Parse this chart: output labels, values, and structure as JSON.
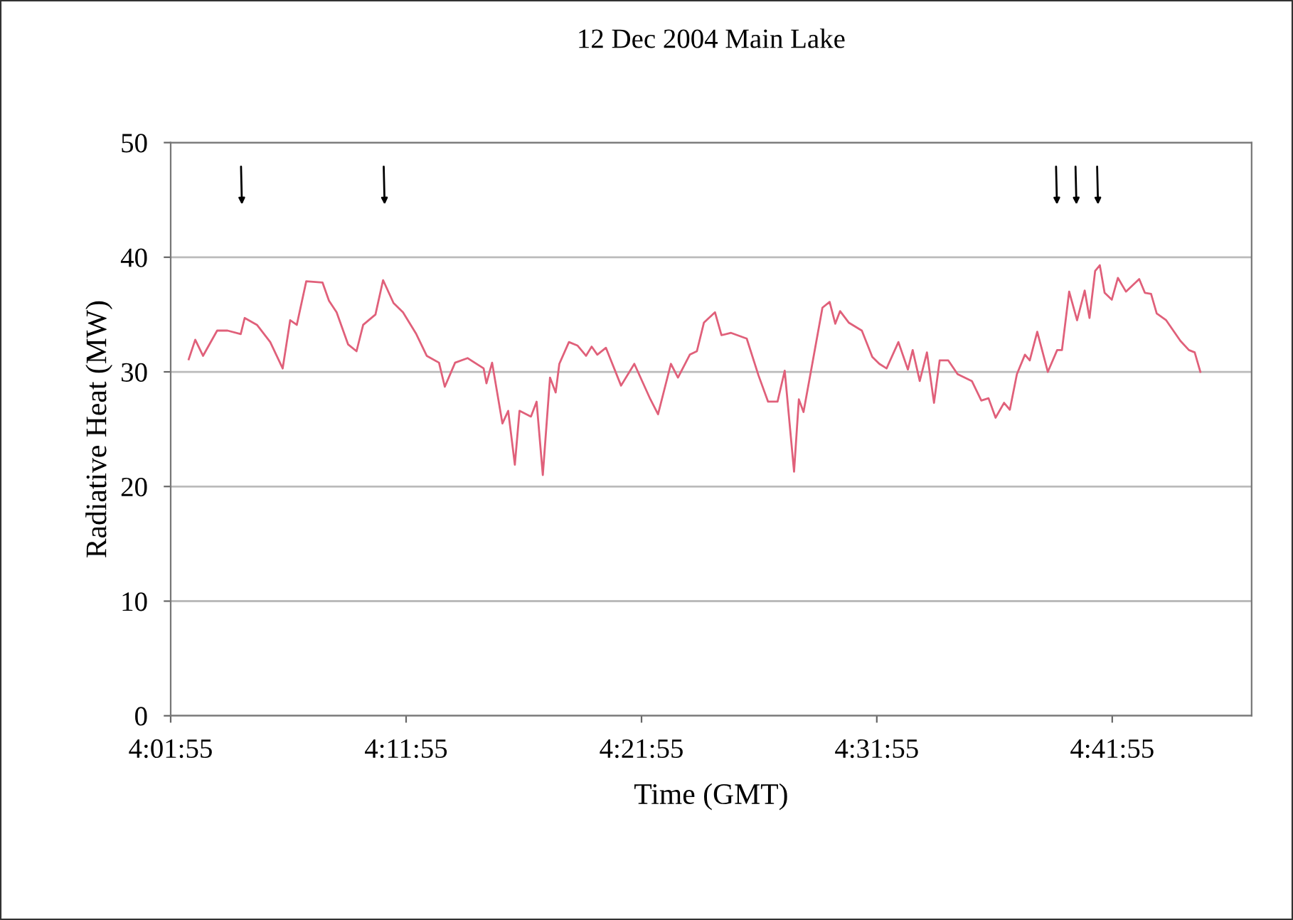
{
  "chart_data": {
    "type": "line",
    "title": "12 Dec 2004 Main Lake",
    "xlabel": "Time (GMT)",
    "ylabel": "Radiative Heat (MW)",
    "xlim": [
      4.0319,
      4.7973
    ],
    "ylim": [
      0,
      50
    ],
    "yticks": [
      0,
      10,
      20,
      30,
      40,
      50
    ],
    "xticks": [
      {
        "value": 4.0319,
        "label": "4:01:55"
      },
      {
        "value": 4.1986,
        "label": "4:11:55"
      },
      {
        "value": 4.3653,
        "label": "4:21:55"
      },
      {
        "value": 4.5319,
        "label": "4:31:55"
      },
      {
        "value": 4.6986,
        "label": "4:41:55"
      }
    ],
    "grid": "y",
    "marker": "none",
    "line_style": "solid",
    "series": [
      {
        "color": "#e0607a",
        "x": [
          4.0447,
          4.0493,
          4.0548,
          4.0648,
          4.0722,
          4.0815,
          4.0843,
          4.093,
          4.1024,
          4.1112,
          4.1165,
          4.1212,
          4.1279,
          4.1394,
          4.144,
          4.1494,
          4.1575,
          4.1635,
          4.1682,
          4.1769,
          4.1823,
          4.1897,
          4.1964,
          4.2058,
          4.2132,
          4.2219,
          4.226,
          4.2333,
          4.2421,
          4.2535,
          4.2555,
          4.2595,
          4.2668,
          4.2709,
          4.2756,
          4.2789,
          4.287,
          4.291,
          4.2954,
          4.3005,
          4.3045,
          4.3071,
          4.3139,
          4.3199,
          4.326,
          4.33,
          4.334,
          4.3401,
          4.3508,
          4.3602,
          4.3716,
          4.377,
          4.3861,
          4.3911,
          4.3995,
          4.4045,
          4.4095,
          4.4173,
          4.4219,
          4.4287,
          4.4398,
          4.4481,
          4.4549,
          4.4616,
          4.4667,
          4.4733,
          4.4767,
          4.48,
          4.4868,
          4.4934,
          4.4985,
          4.5025,
          4.5059,
          4.512,
          4.5213,
          4.5287,
          4.5337,
          4.5388,
          4.5472,
          4.5539,
          4.5573,
          4.5623,
          4.5674,
          4.5724,
          4.5764,
          4.5825,
          4.5891,
          4.5992,
          4.6059,
          4.611,
          4.616,
          4.622,
          4.6261,
          4.6311,
          4.6368,
          4.6402,
          4.6455,
          4.653,
          4.6596,
          4.663,
          4.6681,
          4.6737,
          4.6791,
          4.6825,
          4.6865,
          4.6898,
          4.6932,
          4.6983,
          4.7026,
          4.7083,
          4.7177,
          4.7217,
          4.7261,
          4.7301,
          4.7368,
          4.7469,
          4.7529,
          4.757,
          4.761
        ],
        "values": [
          31.1,
          32.8,
          31.4,
          33.6,
          33.6,
          33.3,
          34.7,
          34.1,
          32.6,
          30.3,
          34.5,
          34.1,
          37.9,
          37.8,
          36.2,
          35.2,
          32.4,
          31.8,
          34.1,
          35.0,
          38.0,
          36.0,
          35.2,
          33.3,
          31.4,
          30.8,
          28.7,
          30.8,
          31.2,
          30.3,
          29.0,
          30.8,
          25.5,
          26.6,
          21.9,
          26.6,
          26.1,
          27.4,
          21.0,
          29.5,
          28.2,
          30.7,
          32.6,
          32.3,
          31.4,
          32.2,
          31.5,
          32.1,
          28.8,
          30.7,
          27.6,
          26.3,
          30.7,
          29.5,
          31.5,
          31.8,
          34.3,
          35.2,
          33.2,
          33.4,
          32.9,
          29.7,
          27.4,
          27.4,
          30.1,
          21.3,
          27.6,
          26.5,
          31.1,
          35.6,
          36.1,
          34.2,
          35.3,
          34.3,
          33.6,
          31.3,
          30.7,
          30.3,
          32.6,
          30.2,
          31.9,
          29.2,
          31.7,
          27.3,
          31.0,
          31.0,
          29.8,
          29.2,
          27.5,
          27.7,
          26.0,
          27.3,
          26.7,
          29.8,
          31.5,
          31.0,
          33.5,
          30.0,
          31.9,
          31.9,
          37.0,
          34.5,
          37.1,
          34.7,
          38.8,
          39.3,
          36.9,
          36.3,
          38.2,
          37.0,
          38.1,
          36.9,
          36.8,
          35.1,
          34.5,
          32.7,
          31.9,
          31.7,
          30.0
        ]
      }
    ]
  }
}
